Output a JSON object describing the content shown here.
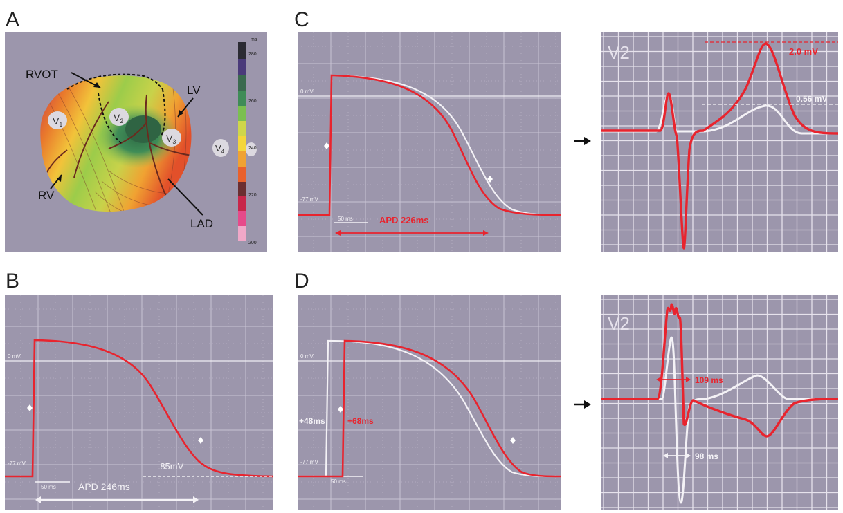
{
  "panels": {
    "A": {
      "label": "A",
      "anatomy": {
        "rvot": "RVOT",
        "lv": "LV",
        "rv": "RV",
        "lad": "LAD"
      },
      "leads": {
        "v1": "V",
        "v1_sub": "1",
        "v2": "V",
        "v2_sub": "2",
        "v3": "V",
        "v3_sub": "3",
        "v4": "V",
        "v4_sub": "4"
      },
      "colorbar": {
        "unit": "ms",
        "ticks": [
          "280",
          "260",
          "240",
          "220",
          "200"
        ]
      }
    },
    "B": {
      "label": "B",
      "zero_label": "0 mV",
      "rest_label": "-77 mV",
      "scale_label": "50 ms",
      "apd_label": "APD 246ms",
      "end_label": "-85mV"
    },
    "C": {
      "label": "C",
      "zero_label": "0 mV",
      "rest_label": "-77 mV",
      "scale_label": "50 ms",
      "apd_label": "APD 226ms"
    },
    "D": {
      "label": "D",
      "zero_label": "0 mV",
      "rest_label": "-77 mV",
      "scale_label": "50 ms",
      "white_shift": "+48ms",
      "red_shift": "+68ms"
    },
    "ecg_top": {
      "lead": "V2",
      "red_peak": "2.0 mV",
      "white_peak": "0.56 mV"
    },
    "ecg_bottom": {
      "lead": "V2",
      "red_interval": "109 ms",
      "white_interval": "98 ms"
    }
  },
  "colors": {
    "panel_bg": "#9c96ac",
    "red": "#e8242e",
    "white": "#f4f2f6",
    "ecg_grid": "#e6e2ec"
  }
}
